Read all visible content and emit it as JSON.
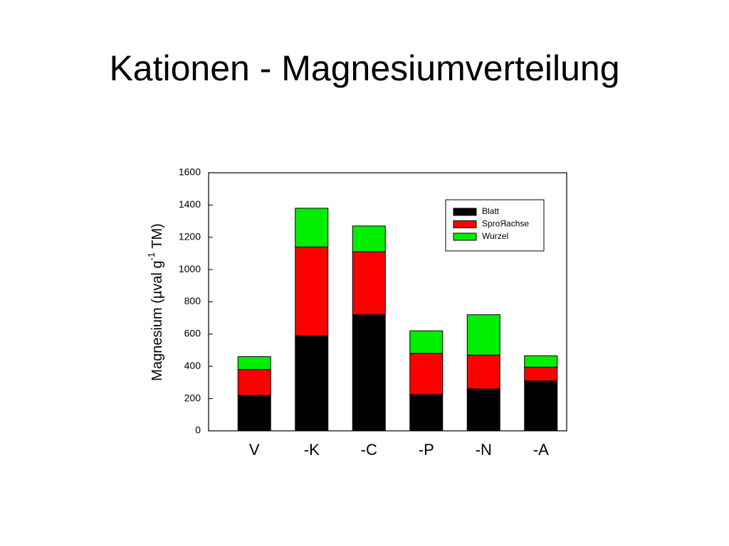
{
  "chart_data": {
    "type": "stacked_bar",
    "title": "Kationen - Magnesiumverteilung",
    "y_label": {
      "text": "Magnesium (µval g",
      "superscript": "-1",
      "suffix": " TM)"
    },
    "categories": [
      "V",
      "-K",
      "-C",
      "-P",
      "-N",
      "-A"
    ],
    "series": [
      {
        "name": "Blatt",
        "color": "#000000",
        "values": [
          220,
          590,
          720,
          225,
          260,
          310
        ]
      },
      {
        "name": "SproЯachse",
        "color": "#ff0000",
        "values": [
          160,
          550,
          390,
          255,
          210,
          85
        ]
      },
      {
        "name": "Wurzel",
        "color": "#00ee00",
        "values": [
          80,
          240,
          160,
          140,
          250,
          70
        ]
      }
    ],
    "ylim": [
      0,
      1600
    ],
    "yticks": [
      0,
      200,
      400,
      600,
      800,
      1000,
      1200,
      1400,
      1600
    ],
    "legend": "upper right"
  }
}
